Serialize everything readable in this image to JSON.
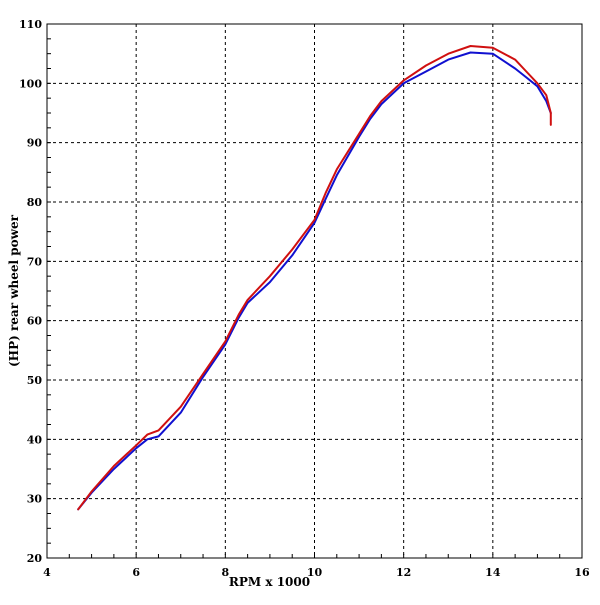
{
  "chart_data": {
    "type": "line",
    "title": "",
    "xlabel": "RPM x 1000",
    "ylabel": "(HP) rear wheel power",
    "xlim": [
      4,
      16
    ],
    "ylim": [
      20,
      110
    ],
    "x_ticks": [
      4,
      6,
      8,
      10,
      12,
      14,
      16
    ],
    "y_ticks": [
      20,
      30,
      40,
      50,
      60,
      70,
      80,
      90,
      100,
      110
    ],
    "x_tick_labels": [
      "4",
      "6",
      "8",
      "10",
      "12",
      "14",
      "16"
    ],
    "y_tick_labels": [
      "20",
      "30",
      "40",
      "50",
      "60",
      "70",
      "80",
      "90",
      "100",
      "110"
    ],
    "grid": true,
    "series": [
      {
        "color": "#1010d0",
        "x": [
          4.7,
          5.0,
          5.5,
          6.0,
          6.25,
          6.5,
          7.0,
          7.5,
          8.0,
          8.3,
          8.5,
          9.0,
          9.5,
          10.0,
          10.25,
          10.5,
          11.0,
          11.25,
          11.5,
          12.0,
          12.5,
          13.0,
          13.5,
          14.0,
          14.5,
          14.75,
          15.0,
          15.2,
          15.3
        ],
        "y": [
          28.2,
          31.0,
          35.0,
          38.5,
          40.0,
          40.5,
          44.5,
          50.5,
          56.0,
          60.5,
          63.0,
          66.5,
          71.0,
          76.5,
          80.5,
          84.5,
          91.0,
          94.0,
          96.5,
          100.0,
          102.0,
          104.0,
          105.2,
          105.0,
          102.5,
          101.0,
          99.5,
          97.0,
          95.0
        ]
      },
      {
        "color": "#d01010",
        "x": [
          4.7,
          5.0,
          5.5,
          6.0,
          6.25,
          6.5,
          7.0,
          7.5,
          8.0,
          8.3,
          8.5,
          9.0,
          9.5,
          10.0,
          10.25,
          10.5,
          11.0,
          11.25,
          11.5,
          12.0,
          12.5,
          13.0,
          13.5,
          14.0,
          14.5,
          14.75,
          15.0,
          15.2,
          15.3,
          15.3
        ],
        "y": [
          28.2,
          31.2,
          35.5,
          39.0,
          40.8,
          41.5,
          45.5,
          51.0,
          56.5,
          61.0,
          63.5,
          67.5,
          72.0,
          77.0,
          81.5,
          85.5,
          91.5,
          94.5,
          97.0,
          100.5,
          103.0,
          105.0,
          106.3,
          106.0,
          104.0,
          102.0,
          100.0,
          98.0,
          95.0,
          93.0
        ]
      }
    ]
  }
}
